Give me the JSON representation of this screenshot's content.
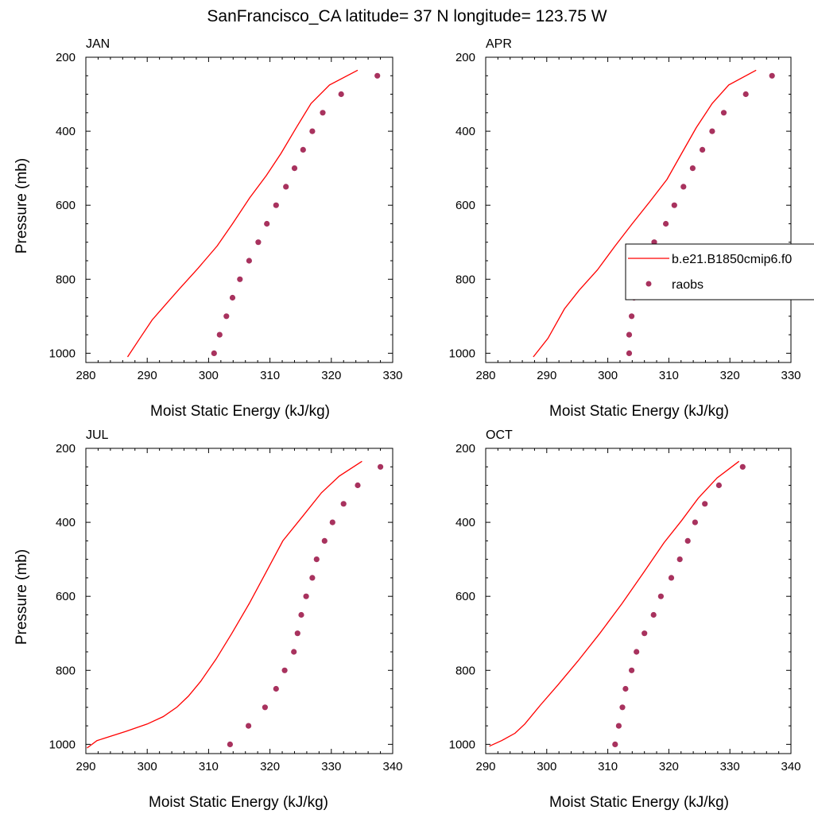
{
  "title": "SanFrancisco_CA  latitude= 37 N longitude= 123.75 W",
  "colors": {
    "model_line": "#ff0000",
    "obs_marker": "#a8325e"
  },
  "legend": {
    "model_label": "b.e21.B1850cmip6.f0",
    "obs_label": "raobs"
  },
  "chart_data": [
    {
      "type": "line",
      "panel": "JAN",
      "xlabel": "Moist Static Energy (kJ/kg)",
      "ylabel": "Pressure (mb)",
      "xlim": [
        280,
        330
      ],
      "ylim": [
        1025,
        200
      ],
      "y_scale": "linear, inverted",
      "xticks": [
        280,
        290,
        300,
        310,
        320,
        330
      ],
      "yticks": [
        200,
        400,
        600,
        800,
        1000
      ],
      "series": [
        {
          "kind": "line",
          "x": [
            286.8,
            288.8,
            290.8,
            292.9,
            295.3,
            298.3,
            301.4,
            303.9,
            306.7,
            309.4,
            311.8,
            314.3,
            316.7,
            319.7,
            324.3
          ],
          "y": [
            1010,
            960,
            910,
            870,
            825,
            770,
            710,
            650,
            580,
            520,
            460,
            390,
            325,
            275,
            235
          ]
        },
        {
          "kind": "scatter",
          "x": [
            300.9,
            301.8,
            302.9,
            303.9,
            305.1,
            306.6,
            308.1,
            309.5,
            311.0,
            312.6,
            314.0,
            315.4,
            316.9,
            318.6,
            321.6,
            327.5
          ],
          "y": [
            1000,
            950,
            900,
            850,
            800,
            750,
            700,
            650,
            600,
            550,
            500,
            450,
            400,
            350,
            300,
            250
          ]
        }
      ]
    },
    {
      "type": "line",
      "panel": "APR",
      "xlabel": "Moist Static Energy (kJ/kg)",
      "ylabel": "",
      "xlim": [
        280,
        330
      ],
      "ylim": [
        1025,
        200
      ],
      "y_scale": "linear, inverted",
      "xticks": [
        280,
        290,
        300,
        310,
        320,
        330
      ],
      "yticks": [
        200,
        400,
        600,
        800,
        1000
      ],
      "legend_position": "right, partially clipped",
      "series": [
        {
          "kind": "line",
          "x": [
            287.8,
            290.2,
            292.9,
            295.3,
            298.3,
            301.2,
            304.0,
            306.9,
            309.7,
            312.1,
            314.5,
            317.1,
            319.8,
            324.3
          ],
          "y": [
            1010,
            960,
            880,
            830,
            775,
            710,
            650,
            590,
            530,
            460,
            390,
            325,
            275,
            235
          ]
        },
        {
          "kind": "scatter",
          "x": [
            303.5,
            303.5,
            303.9,
            304.3,
            304.9,
            306.3,
            307.6,
            309.5,
            310.9,
            312.4,
            313.9,
            315.5,
            317.1,
            319.0,
            322.6,
            326.9
          ],
          "y": [
            1000,
            950,
            900,
            850,
            800,
            750,
            700,
            650,
            600,
            550,
            500,
            450,
            400,
            350,
            300,
            250
          ]
        }
      ]
    },
    {
      "type": "line",
      "panel": "JUL",
      "xlabel": "Moist Static Energy (kJ/kg)",
      "ylabel": "Pressure (mb)",
      "xlim": [
        290,
        340
      ],
      "ylim": [
        1025,
        200
      ],
      "y_scale": "linear, inverted",
      "xticks": [
        290,
        300,
        310,
        320,
        330,
        340
      ],
      "yticks": [
        200,
        400,
        600,
        800,
        1000
      ],
      "series": [
        {
          "kind": "line",
          "x": [
            290.2,
            291.8,
            296.5,
            300.0,
            302.6,
            304.8,
            306.7,
            308.7,
            311.2,
            313.8,
            316.6,
            319.2,
            322.1,
            325.5,
            328.4,
            331.3,
            335.0
          ],
          "y": [
            1010,
            990,
            965,
            945,
            925,
            900,
            870,
            830,
            770,
            700,
            620,
            540,
            450,
            380,
            320,
            275,
            235
          ]
        },
        {
          "kind": "scatter",
          "x": [
            313.5,
            316.5,
            319.2,
            321.0,
            322.4,
            323.9,
            324.5,
            325.1,
            325.9,
            326.9,
            327.6,
            328.9,
            330.2,
            332.0,
            334.3,
            338.0
          ],
          "y": [
            1000,
            950,
            900,
            850,
            800,
            750,
            700,
            650,
            600,
            550,
            500,
            450,
            400,
            350,
            300,
            250
          ]
        }
      ]
    },
    {
      "type": "line",
      "panel": "OCT",
      "xlabel": "Moist Static Energy (kJ/kg)",
      "ylabel": "",
      "xlim": [
        290,
        340
      ],
      "ylim": [
        1025,
        200
      ],
      "y_scale": "linear, inverted",
      "xticks": [
        290,
        300,
        310,
        320,
        330,
        340
      ],
      "yticks": [
        200,
        400,
        600,
        800,
        1000
      ],
      "series": [
        {
          "kind": "line",
          "x": [
            290.6,
            292.6,
            294.8,
            296.4,
            298.9,
            301.8,
            305.1,
            308.7,
            312.3,
            315.9,
            319.2,
            322.1,
            324.8,
            327.9,
            331.5
          ],
          "y": [
            1005,
            990,
            970,
            945,
            895,
            840,
            775,
            700,
            620,
            535,
            455,
            395,
            335,
            280,
            235
          ]
        },
        {
          "kind": "scatter",
          "x": [
            311.2,
            311.8,
            312.4,
            312.9,
            313.9,
            314.7,
            316.0,
            317.5,
            318.7,
            320.4,
            321.8,
            323.1,
            324.3,
            325.9,
            328.2,
            332.1
          ],
          "y": [
            1000,
            950,
            900,
            850,
            800,
            750,
            700,
            650,
            600,
            550,
            500,
            450,
            400,
            350,
            300,
            250
          ]
        }
      ]
    }
  ]
}
